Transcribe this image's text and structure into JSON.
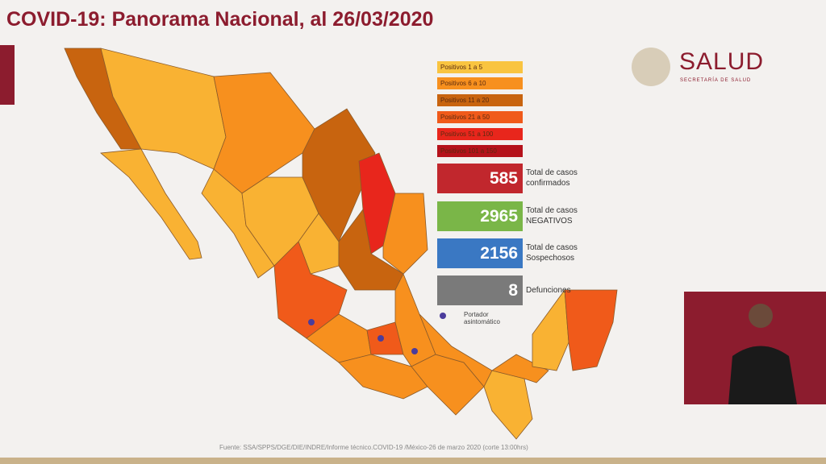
{
  "header": {
    "title": "COVID-19: Panorama Nacional, al 26/03/2020"
  },
  "logo": {
    "name": "SALUD",
    "subtitle": "SECRETARÍA DE SALUD"
  },
  "legend": [
    "Positivos 1 a 5",
    "Positivos 6 a 10",
    "Positivos 11 a 20",
    "Positivos 21 a 50",
    "Positivos 51 a 100",
    "Positivos 101 a 150"
  ],
  "stats": [
    {
      "value": "585",
      "label": "Total de casos confirmados"
    },
    {
      "value": "2965",
      "label": "Total de casos NEGATIVOS"
    },
    {
      "value": "2156",
      "label": "Total de casos Sospechosos"
    },
    {
      "value": "8",
      "label": "Defunciones"
    }
  ],
  "marker_note": "Portador asintomático",
  "footer": "Fuente: SSA/SPPS/DGE/DIE/INDRE/Informe técnico.COVID-19 /México-26 de marzo 2020 (corte 13:00hrs)"
}
